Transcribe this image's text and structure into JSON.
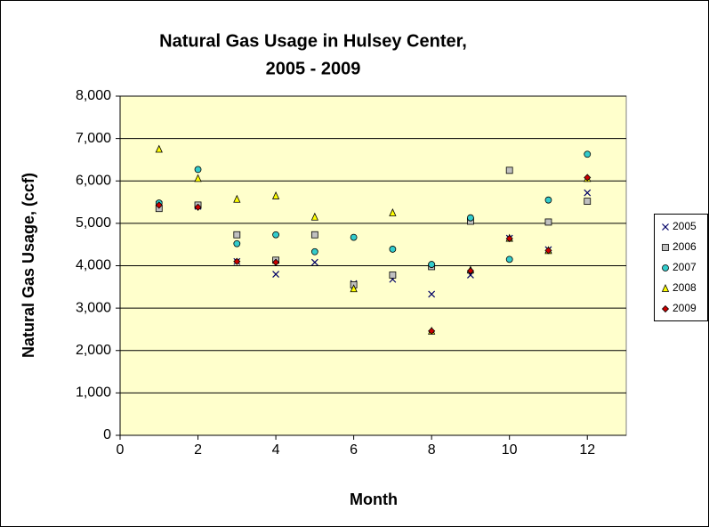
{
  "chart_data": {
    "type": "scatter",
    "title": "Natural Gas Usage in Hulsey Center,",
    "subtitle": "2005 - 2009",
    "x_label": "Month",
    "y_label": "Natural Gas Usage, (ccf)",
    "x": [
      1,
      2,
      3,
      4,
      5,
      6,
      7,
      8,
      9,
      10,
      11,
      12
    ],
    "xlim": [
      0,
      13
    ],
    "xticks": [
      0,
      2,
      4,
      6,
      8,
      10,
      12
    ],
    "ylim": [
      0,
      8000
    ],
    "yticks": [
      0,
      {
        "value": 1000,
        "label": "1,000"
      },
      {
        "value": 2000,
        "label": "2,000"
      },
      {
        "value": 3000,
        "label": "3,000"
      },
      {
        "value": 4000,
        "label": "4,000"
      },
      {
        "value": 5000,
        "label": "5,000"
      },
      {
        "value": 6000,
        "label": "6,000"
      },
      {
        "value": 7000,
        "label": "7,000"
      },
      {
        "value": 8000,
        "label": "8,000"
      }
    ],
    "grid": true,
    "legend": "right",
    "series": [
      {
        "name": "2005",
        "color": "#000066",
        "marker": "x",
        "values": [
          5450,
          5400,
          4100,
          3800,
          4080,
          3580,
          3680,
          3330,
          3780,
          4650,
          4380,
          5720
        ]
      },
      {
        "name": "2006",
        "color": "#c0c0c0",
        "marker": "square",
        "values": [
          5350,
          5430,
          4730,
          4130,
          4730,
          3550,
          3780,
          3980,
          5050,
          6250,
          5030,
          5520
        ]
      },
      {
        "name": "2007",
        "color": "#33cccc",
        "marker": "circle",
        "values": [
          5480,
          6270,
          4520,
          4730,
          4330,
          4670,
          4390,
          4030,
          5130,
          4150,
          5550,
          6630
        ]
      },
      {
        "name": "2008",
        "color": "#ffff00",
        "marker": "triangle",
        "values": [
          6750,
          6060,
          5570,
          5650,
          5150,
          3460,
          5250,
          2460,
          3900,
          4650,
          4360,
          6060
        ]
      },
      {
        "name": "2009",
        "color": "#cc0000",
        "marker": "diamond",
        "values": [
          5430,
          5380,
          4100,
          4080,
          null,
          null,
          null,
          2460,
          3880,
          4640,
          4360,
          6080
        ]
      }
    ]
  }
}
